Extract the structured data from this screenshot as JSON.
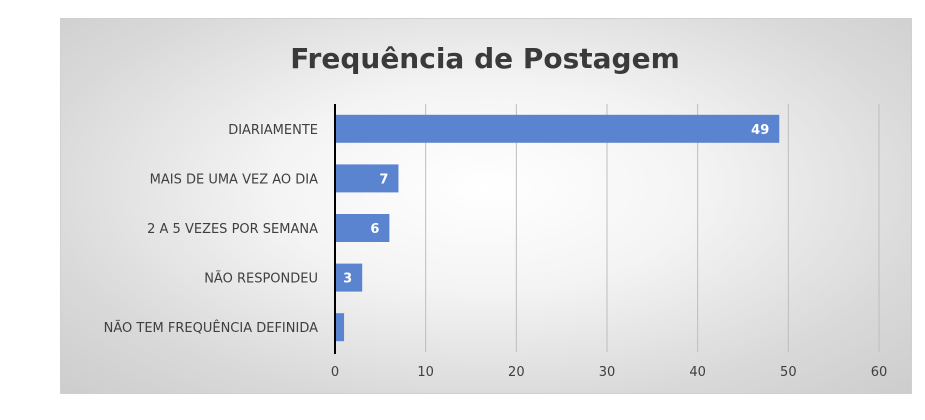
{
  "chart_data": {
    "type": "bar",
    "orientation": "horizontal",
    "title": "Frequência de Postagem",
    "categories": [
      "DIARIAMENTE",
      "MAIS DE UMA VEZ AO DIA",
      "2 A 5 VEZES POR SEMANA",
      "NÃO RESPONDEU",
      "NÃO TEM FREQUÊNCIA DEFINIDA"
    ],
    "values": [
      49,
      7,
      6,
      3,
      1
    ],
    "data_labels": [
      "49",
      "7",
      "6",
      "3",
      ""
    ],
    "xlim": [
      0,
      60
    ],
    "xticks": [
      0,
      10,
      20,
      30,
      40,
      50,
      60
    ],
    "grid": "vertical",
    "legend": "none",
    "colors": {
      "bar": "#5b84d0",
      "grid": "#bdbdbd",
      "axis": "#000000"
    }
  }
}
